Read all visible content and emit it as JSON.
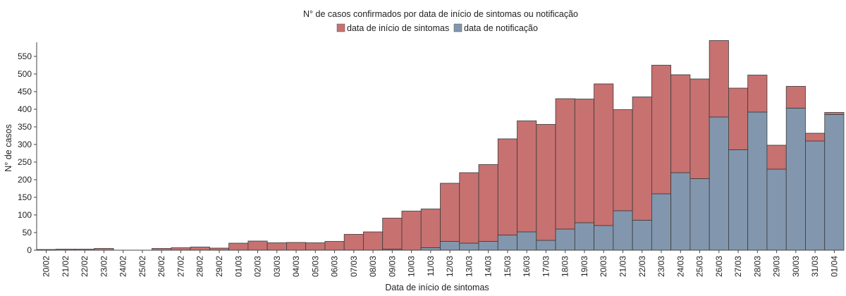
{
  "chart_data": {
    "type": "bar",
    "stacked": true,
    "title": "N° de casos confirmados por data de início de sintomas ou notificação",
    "xlabel": "Data de início de sintomas",
    "ylabel": "N° de casos",
    "ylim": [
      0,
      590
    ],
    "yticks": [
      0,
      50,
      100,
      150,
      200,
      250,
      300,
      350,
      400,
      450,
      500,
      550
    ],
    "grid": false,
    "legend_position": "top",
    "categories": [
      "20/02",
      "21/02",
      "22/02",
      "23/02",
      "24/02",
      "25/02",
      "26/02",
      "27/02",
      "28/02",
      "29/02",
      "01/03",
      "02/03",
      "03/03",
      "04/03",
      "05/03",
      "06/03",
      "07/03",
      "08/03",
      "09/03",
      "10/03",
      "11/03",
      "12/03",
      "13/03",
      "14/03",
      "15/03",
      "16/03",
      "17/03",
      "18/03",
      "19/03",
      "20/03",
      "21/03",
      "22/03",
      "23/03",
      "24/03",
      "25/03",
      "26/03",
      "27/03",
      "28/03",
      "29/03",
      "30/03",
      "31/03",
      "01/04"
    ],
    "series": [
      {
        "name": "data de notificação",
        "color": "#8297ad",
        "values": [
          0,
          0,
          0,
          0,
          0,
          0,
          0,
          0,
          0,
          0,
          0,
          0,
          0,
          0,
          0,
          0,
          0,
          0,
          3,
          0,
          7,
          25,
          20,
          25,
          43,
          52,
          28,
          60,
          78,
          70,
          112,
          85,
          160,
          220,
          203,
          378,
          285,
          392,
          230,
          403,
          310,
          385
        ]
      },
      {
        "name": "data de início de sintomas",
        "color": "#c77171",
        "values": [
          2,
          3,
          3,
          5,
          0,
          0,
          5,
          7,
          9,
          6,
          20,
          26,
          21,
          22,
          21,
          25,
          45,
          52,
          88,
          111,
          110,
          165,
          200,
          218,
          273,
          315,
          329,
          370,
          351,
          402,
          287,
          350,
          365,
          278,
          283,
          217,
          175,
          105,
          68,
          62,
          22,
          6
        ]
      }
    ]
  }
}
